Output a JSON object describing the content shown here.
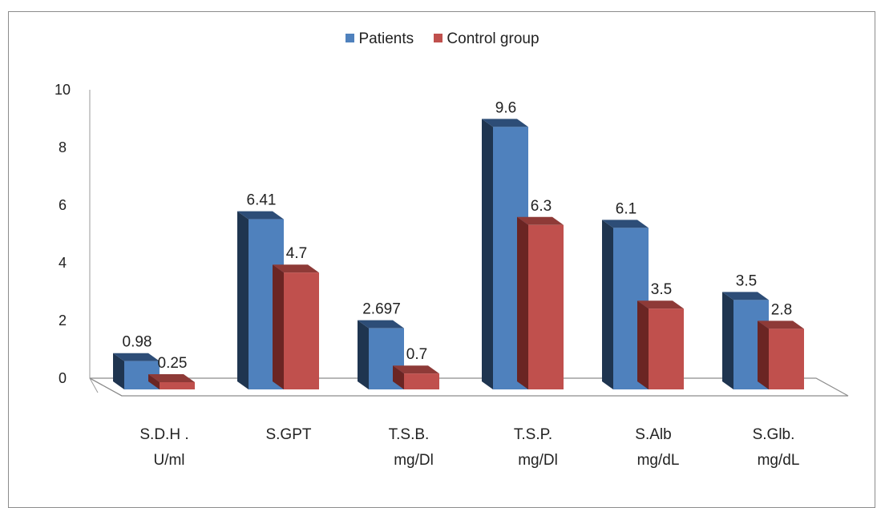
{
  "chart_data": {
    "type": "bar",
    "title": "",
    "xlabel": "",
    "ylabel": "",
    "ylim": [
      0,
      10
    ],
    "yticks": [
      "0",
      "2",
      "4",
      "6",
      "8",
      "10"
    ],
    "grid": false,
    "legend_position": "top",
    "categories": [
      [
        "S.D.H .",
        "U/ml"
      ],
      [
        "S.GPT"
      ],
      [
        "T.S.B.",
        "mg/Dl"
      ],
      [
        "T.S.P.",
        "mg/Dl"
      ],
      [
        "S.Alb",
        "mg/dL"
      ],
      [
        "S.Glb.",
        "mg/dL"
      ]
    ],
    "series": [
      {
        "name": "Patients",
        "color": "#4f81bd",
        "side_color": "#1f3550",
        "top_color": "#2d4d77",
        "values": [
          0.98,
          6.41,
          2.697,
          9.6,
          6.1,
          3.5
        ],
        "labels": [
          "0.98",
          "6.41",
          "2.697",
          "9.6",
          "6.1",
          "3.5"
        ],
        "heights": [
          0.98,
          5.9,
          2.12,
          9.1,
          5.6,
          3.1
        ]
      },
      {
        "name": "Control group",
        "color": "#c0504d",
        "side_color": "#6b2523",
        "top_color": "#8e3a37",
        "values": [
          0.25,
          4.7,
          0.7,
          6.3,
          3.5,
          2.8
        ],
        "labels": [
          "0.25",
          "4.7",
          "0.7",
          "6.3",
          "3.5",
          "2.8"
        ],
        "heights": [
          0.25,
          4.05,
          0.55,
          5.7,
          2.8,
          2.1
        ]
      }
    ]
  }
}
